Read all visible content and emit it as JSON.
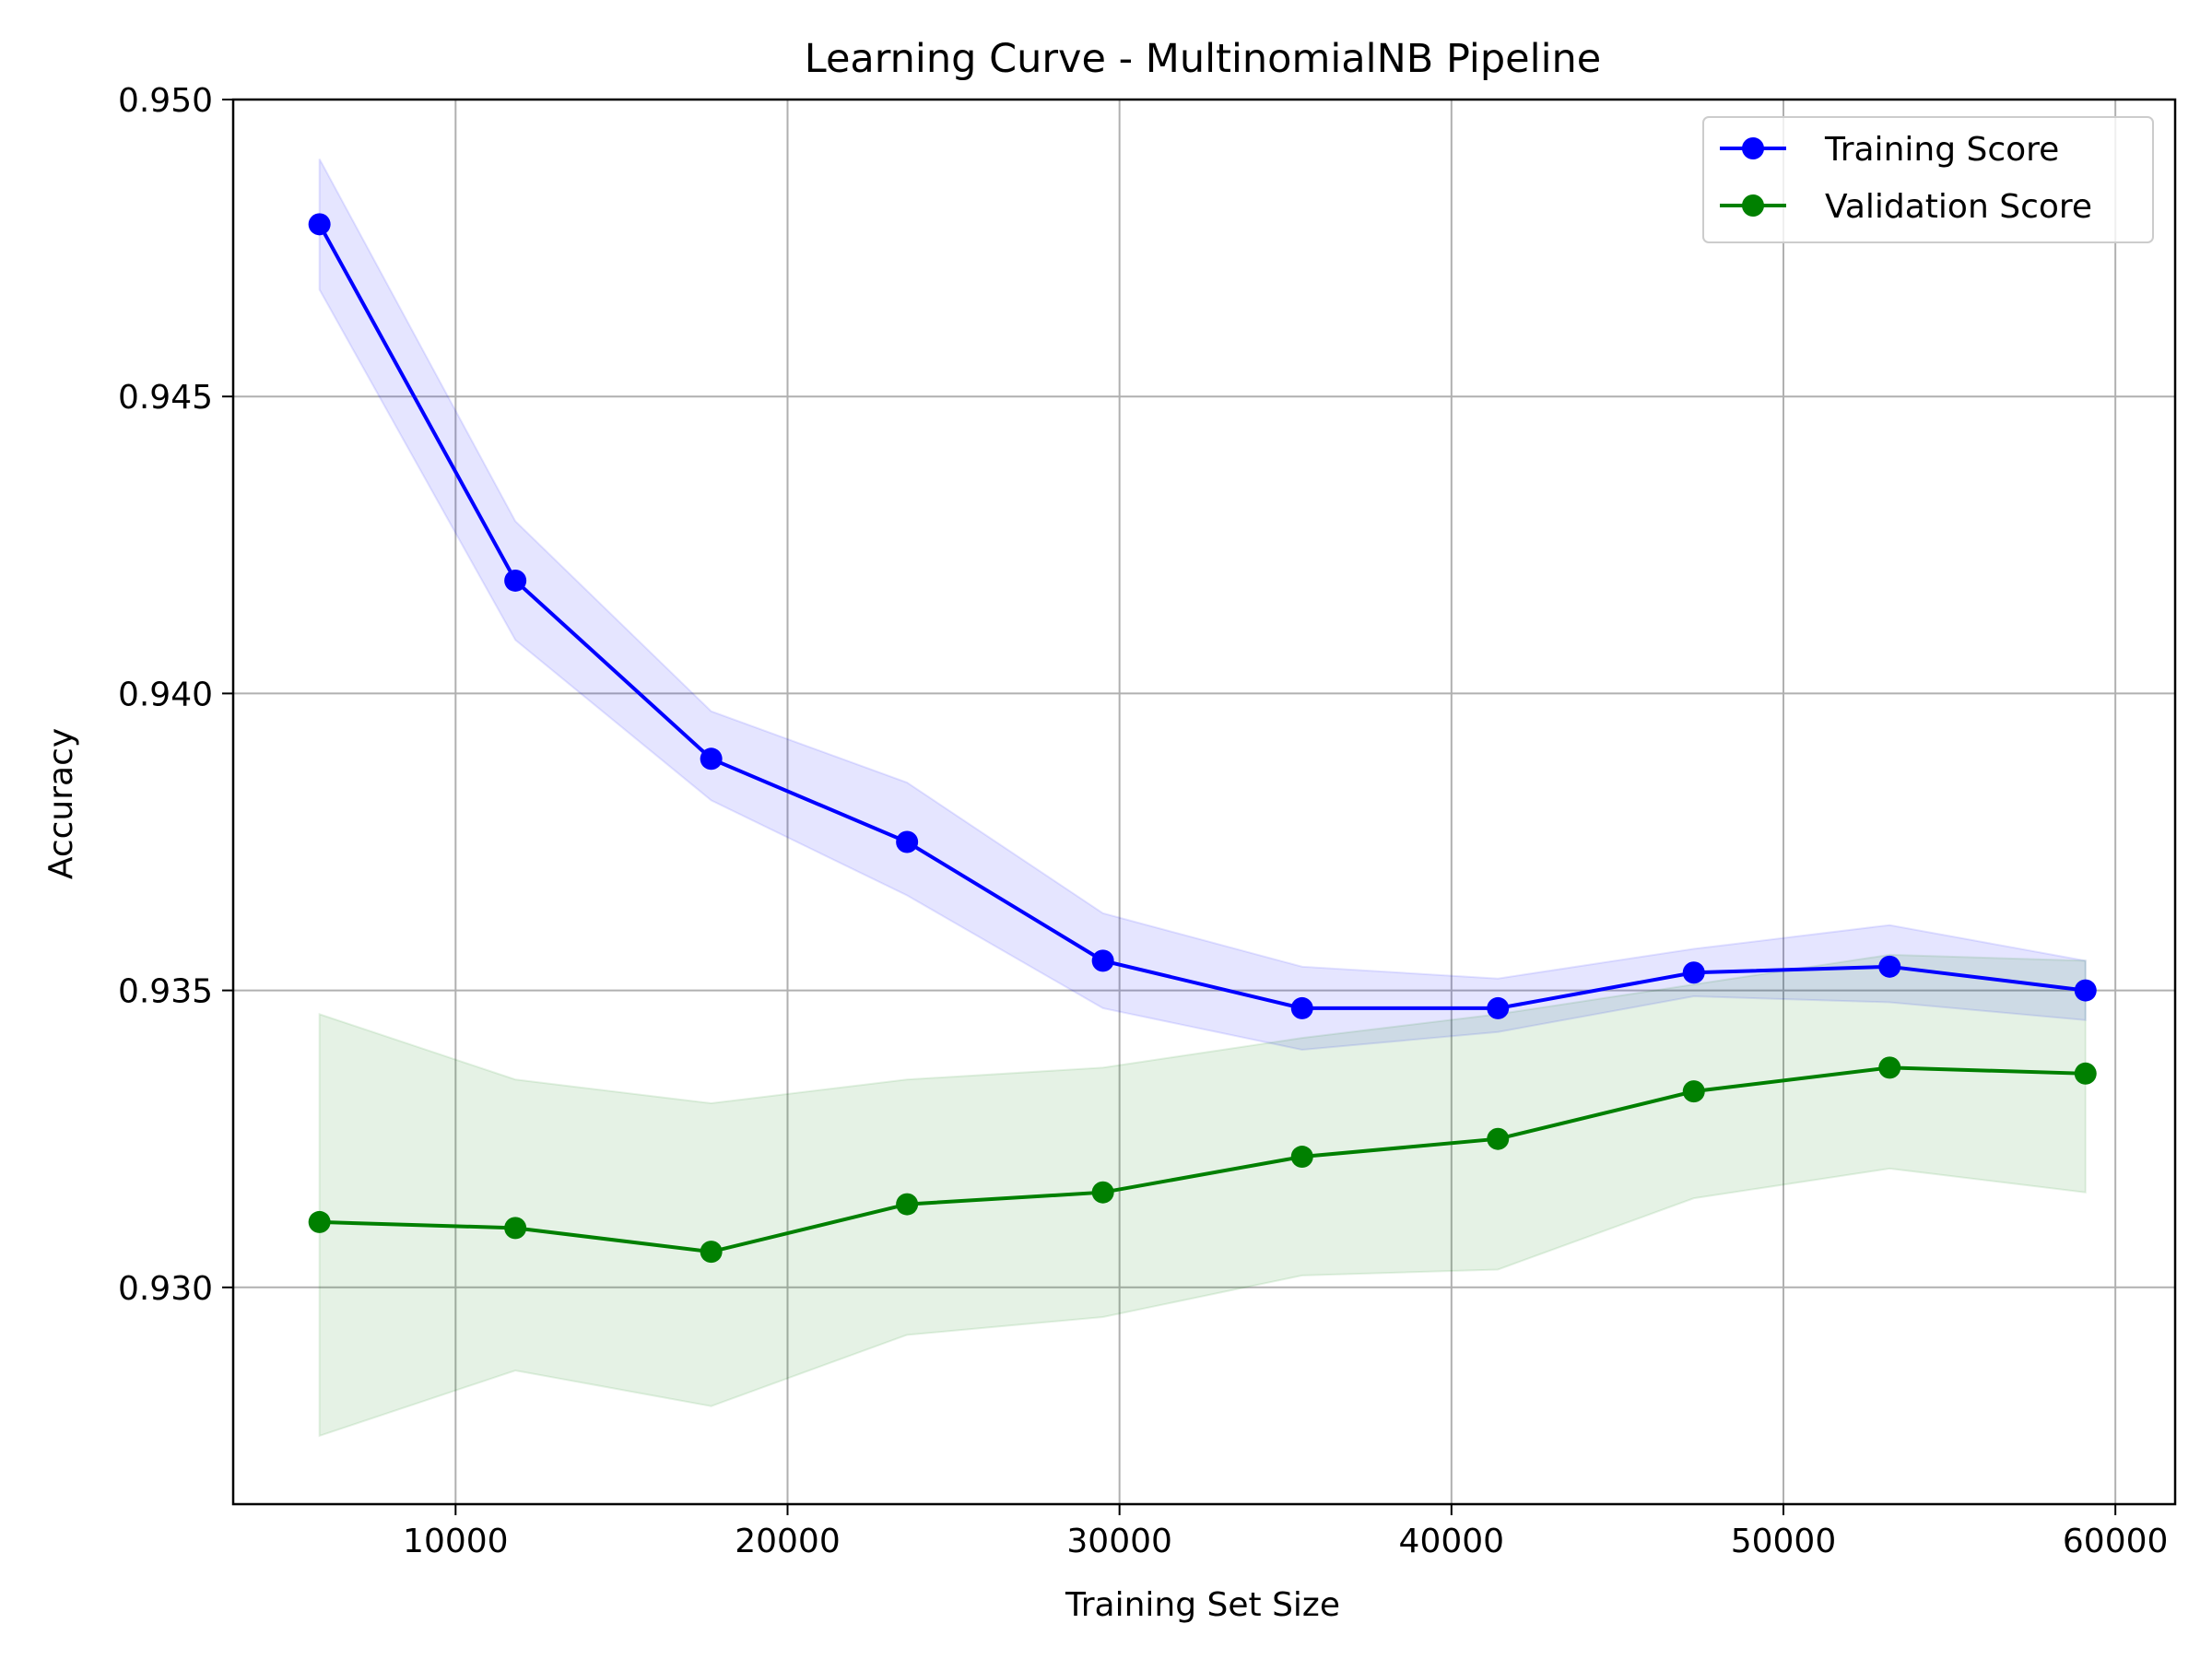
{
  "chart_data": {
    "type": "line",
    "title": "Learning Curve - MultinomialNB Pipeline",
    "xlabel": "Training Set Size",
    "ylabel": "Accuracy",
    "xlim": [
      3300,
      61800
    ],
    "ylim": [
      0.92635,
      0.95
    ],
    "x_ticks": [
      10000,
      20000,
      30000,
      40000,
      50000,
      60000
    ],
    "x_tick_labels": [
      "10000",
      "20000",
      "30000",
      "40000",
      "50000",
      "60000"
    ],
    "y_ticks": [
      0.93,
      0.935,
      0.94,
      0.945,
      0.95
    ],
    "y_tick_labels": [
      "0.930",
      "0.935",
      "0.940",
      "0.945",
      "0.950"
    ],
    "grid": true,
    "legend_position": "top-right",
    "x": [
      5900,
      11800,
      17700,
      23600,
      29500,
      35500,
      41400,
      47300,
      53200,
      59100
    ],
    "series": [
      {
        "name": "Training Score",
        "color": "#0000ff",
        "values": [
          0.9479,
          0.9419,
          0.9389,
          0.9375,
          0.9355,
          0.9347,
          0.9347,
          0.9353,
          0.9354,
          0.935
        ],
        "band_lower": [
          0.9468,
          0.9409,
          0.9382,
          0.9366,
          0.9347,
          0.934,
          0.9343,
          0.9349,
          0.9348,
          0.9345
        ],
        "band_upper": [
          0.949,
          0.9429,
          0.9397,
          0.9385,
          0.9363,
          0.9354,
          0.9352,
          0.9357,
          0.9361,
          0.9355
        ]
      },
      {
        "name": "Validation Score",
        "color": "#008000",
        "values": [
          0.9311,
          0.931,
          0.9306,
          0.9314,
          0.9316,
          0.9322,
          0.9325,
          0.9333,
          0.9337,
          0.9336
        ],
        "band_lower": [
          0.9275,
          0.9286,
          0.928,
          0.9292,
          0.9295,
          0.9302,
          0.9303,
          0.9315,
          0.932,
          0.9316
        ],
        "band_upper": [
          0.9346,
          0.9335,
          0.9331,
          0.9335,
          0.9337,
          0.9342,
          0.9346,
          0.9351,
          0.9356,
          0.9355
        ]
      }
    ]
  }
}
